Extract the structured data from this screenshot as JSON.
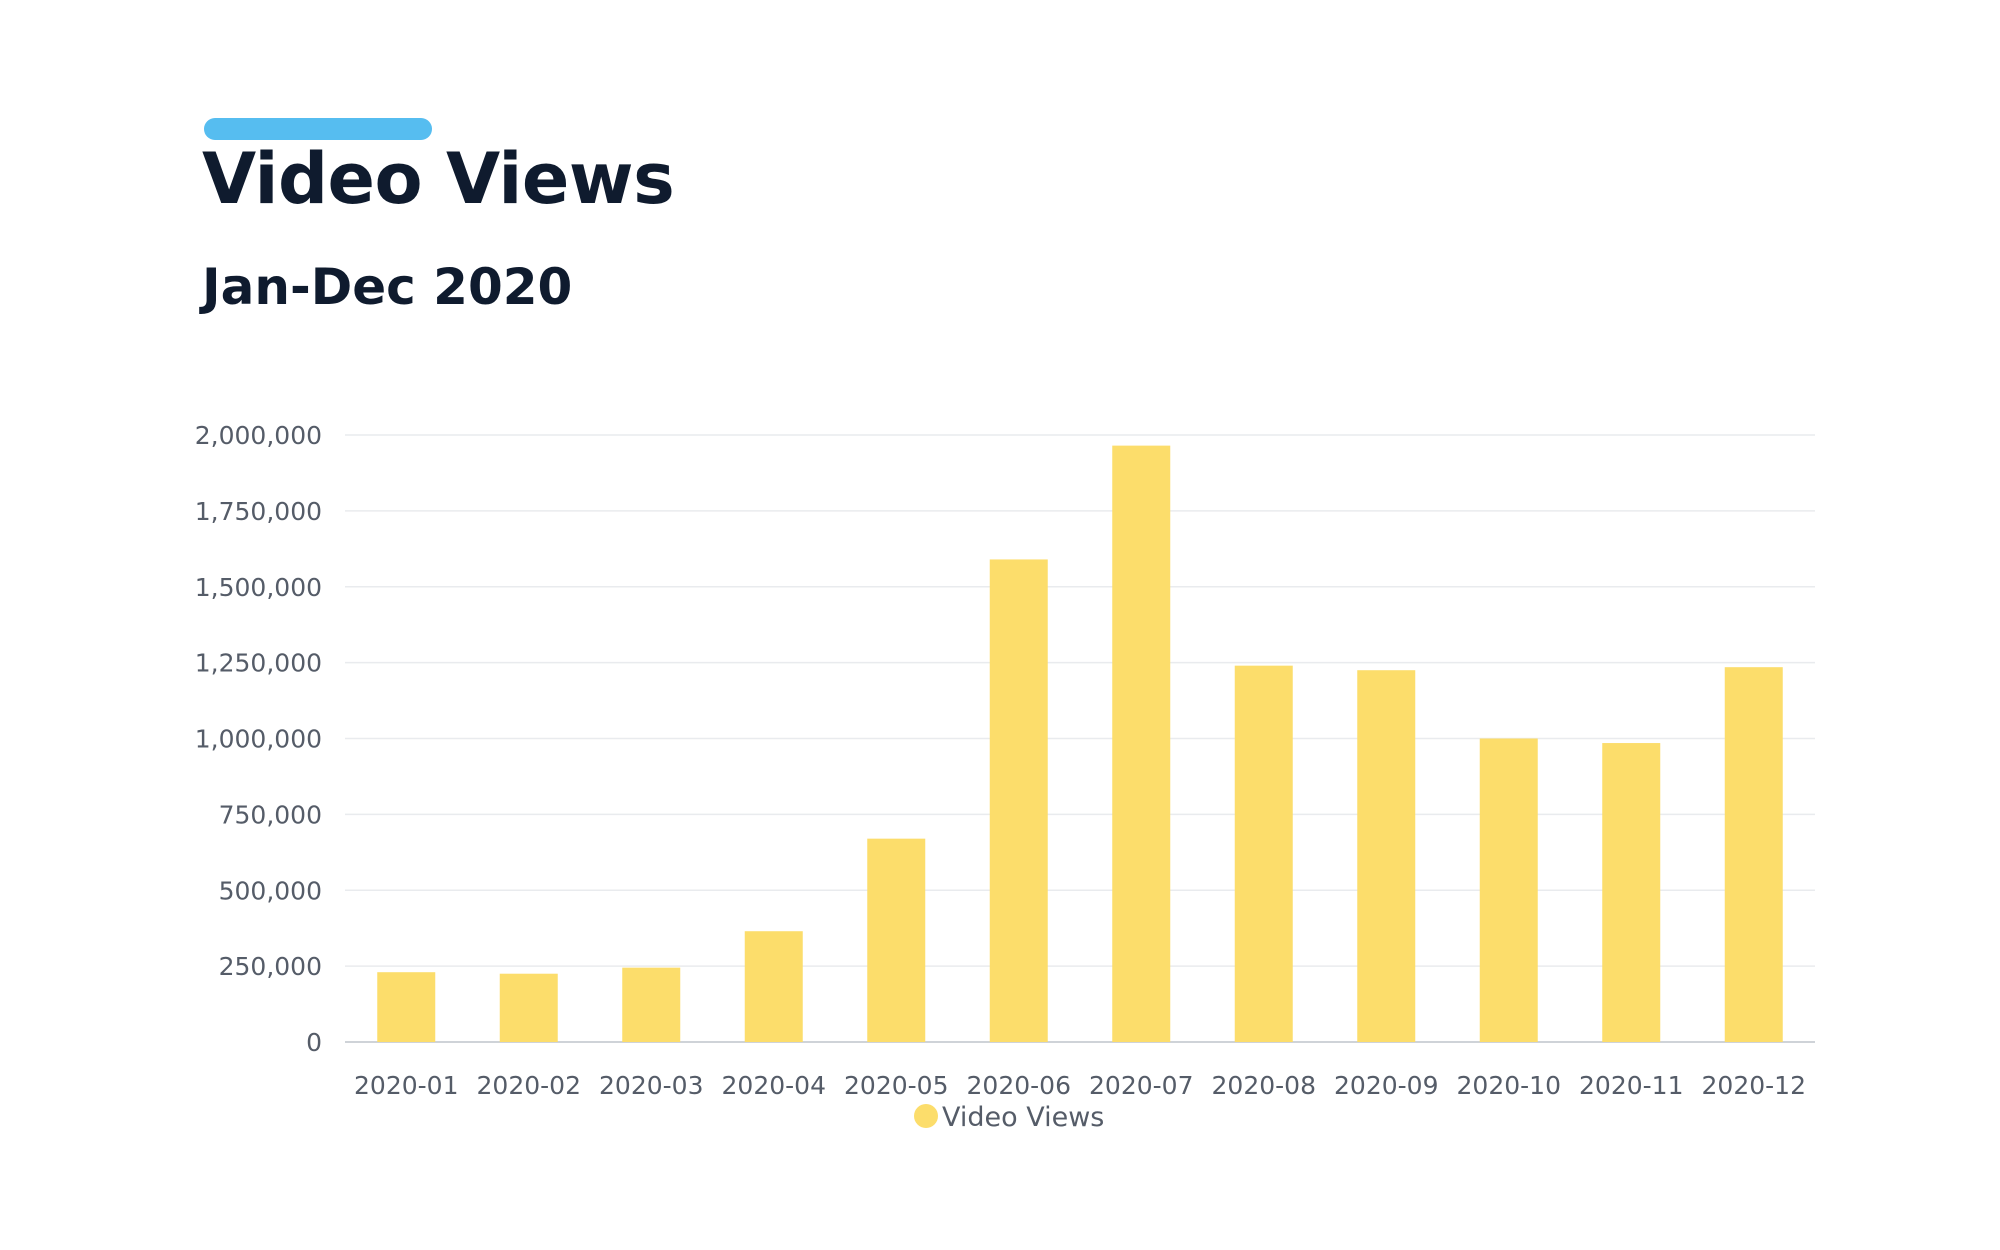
{
  "header": {
    "title": "Video Views",
    "subtitle": "Jan-Dec 2020"
  },
  "colors": {
    "accent": "#56BDF0",
    "bar": "#FCDD6B",
    "grid": "#e9ebee",
    "axis": "#cfd3d8",
    "text": "#555c68"
  },
  "chart_data": {
    "type": "bar",
    "title": "Video Views",
    "subtitle": "Jan-Dec 2020",
    "xlabel": "",
    "ylabel": "",
    "categories": [
      "2020-01",
      "2020-02",
      "2020-03",
      "2020-04",
      "2020-05",
      "2020-06",
      "2020-07",
      "2020-08",
      "2020-09",
      "2020-10",
      "2020-11",
      "2020-12"
    ],
    "series": [
      {
        "name": "Video Views",
        "values": [
          230000,
          225000,
          245000,
          365000,
          670000,
          1590000,
          1965000,
          1240000,
          1225000,
          1000000,
          985000,
          1235000
        ]
      }
    ],
    "ylim": [
      0,
      2000000
    ],
    "yticks": [
      0,
      250000,
      500000,
      750000,
      1000000,
      1250000,
      1500000,
      1750000,
      2000000
    ],
    "ytick_labels": [
      "0",
      "250,000",
      "500,000",
      "750,000",
      "1,000,000",
      "1,250,000",
      "1,500,000",
      "1,750,000",
      "2,000,000"
    ],
    "grid": true,
    "legend": "bottom-center"
  }
}
